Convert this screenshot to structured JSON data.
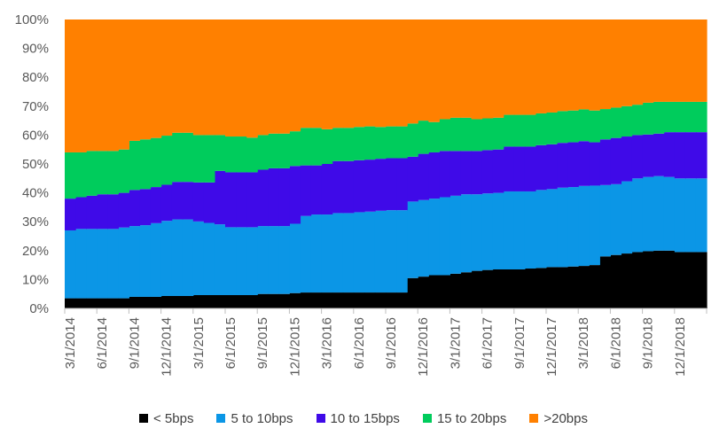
{
  "chart_data": {
    "type": "area",
    "stacked": true,
    "percent": true,
    "step": true,
    "ylim": [
      0,
      100
    ],
    "yticks": [
      "0%",
      "10%",
      "20%",
      "30%",
      "40%",
      "50%",
      "60%",
      "70%",
      "80%",
      "90%",
      "100%"
    ],
    "x_tick_labels": [
      "3/1/2014",
      "6/1/2014",
      "9/1/2014",
      "12/1/2014",
      "3/1/2015",
      "6/1/2015",
      "9/1/2015",
      "12/1/2015",
      "3/1/2016",
      "6/1/2016",
      "9/1/2016",
      "12/1/2016",
      "3/1/2017",
      "6/1/2017",
      "9/1/2017",
      "12/1/2017",
      "3/1/2018",
      "6/1/2018",
      "9/1/2018",
      "12/1/2018"
    ],
    "x_first": "3/1/2014",
    "x_last": "1/1/2019",
    "x_frequency": "monthly",
    "legend_position": "bottom",
    "grid": false,
    "series": [
      {
        "name": "< 5bps",
        "color": "#000000",
        "values": [
          3.5,
          3.5,
          3.5,
          3.5,
          3.5,
          3.5,
          4.0,
          4.0,
          4.0,
          4.3,
          4.3,
          4.3,
          4.6,
          4.6,
          4.6,
          4.6,
          4.6,
          4.6,
          5.0,
          5.0,
          5.0,
          5.3,
          5.5,
          5.5,
          5.5,
          5.5,
          5.5,
          5.5,
          5.5,
          5.5,
          5.5,
          5.5,
          10.5,
          11.0,
          11.5,
          11.5,
          12.0,
          12.5,
          13.0,
          13.3,
          13.5,
          13.5,
          13.5,
          13.8,
          14.0,
          14.3,
          14.3,
          14.5,
          14.7,
          15.0,
          18.0,
          18.5,
          19.0,
          19.5,
          19.8,
          20.0,
          20.0,
          19.5,
          19.5,
          19.5
        ]
      },
      {
        "name": "5 to 10bps",
        "color": "#0b96e6",
        "values": [
          23.5,
          24.0,
          24.0,
          24.0,
          24.0,
          24.5,
          24.5,
          24.8,
          25.5,
          26.0,
          26.5,
          26.5,
          25.5,
          25.0,
          24.5,
          23.5,
          23.5,
          23.5,
          23.5,
          23.5,
          23.5,
          24.0,
          26.5,
          27.0,
          27.0,
          27.5,
          27.5,
          27.8,
          28.0,
          28.3,
          28.5,
          28.5,
          26.5,
          26.5,
          26.5,
          27.0,
          27.0,
          27.0,
          26.5,
          26.5,
          26.5,
          27.0,
          27.0,
          26.7,
          27.0,
          27.0,
          27.5,
          27.5,
          27.7,
          27.5,
          24.7,
          24.5,
          25.0,
          25.5,
          25.7,
          25.8,
          25.5,
          25.5,
          25.5,
          25.5
        ]
      },
      {
        "name": "10 to 15bps",
        "color": "#3f0ae8",
        "values": [
          11.0,
          11.0,
          11.5,
          12.0,
          12.0,
          12.0,
          12.5,
          12.5,
          12.5,
          12.5,
          13.0,
          13.0,
          13.5,
          14.0,
          18.5,
          19.0,
          19.0,
          19.0,
          19.5,
          20.0,
          20.0,
          20.0,
          17.5,
          17.0,
          17.5,
          18.0,
          18.0,
          18.0,
          18.0,
          18.0,
          18.0,
          18.0,
          15.5,
          16.0,
          16.0,
          16.0,
          15.5,
          15.0,
          15.0,
          15.0,
          15.0,
          15.5,
          15.5,
          15.5,
          15.5,
          15.5,
          15.5,
          15.5,
          15.5,
          15.0,
          15.8,
          16.0,
          15.5,
          15.0,
          14.7,
          14.7,
          15.5,
          16.0,
          16.0,
          16.0
        ]
      },
      {
        "name": "15 to 20bps",
        "color": "#00cc5c",
        "values": [
          16.0,
          15.5,
          15.5,
          15.0,
          15.0,
          15.0,
          17.0,
          17.2,
          17.0,
          17.0,
          17.0,
          17.0,
          16.4,
          16.4,
          12.4,
          12.4,
          12.4,
          12.0,
          12.0,
          12.0,
          12.0,
          12.0,
          13.0,
          13.0,
          12.0,
          11.5,
          11.5,
          11.5,
          11.5,
          11.0,
          11.0,
          11.0,
          11.5,
          11.5,
          10.5,
          11.0,
          11.5,
          11.5,
          11.0,
          11.0,
          11.0,
          11.0,
          11.0,
          11.0,
          11.0,
          11.0,
          11.0,
          11.0,
          11.0,
          11.0,
          10.5,
          10.5,
          10.5,
          10.5,
          11.0,
          11.0,
          10.5,
          10.5,
          10.5,
          10.5
        ]
      },
      {
        "name": ">20bps",
        "color": "#ff8000",
        "values": [
          46.0,
          46.0,
          45.5,
          45.5,
          45.5,
          45.0,
          42.0,
          41.5,
          41.0,
          40.2,
          39.2,
          39.2,
          40.0,
          40.0,
          40.0,
          40.5,
          40.5,
          40.9,
          40.0,
          39.5,
          39.5,
          38.7,
          37.5,
          37.5,
          38.0,
          37.5,
          37.5,
          37.2,
          37.0,
          37.2,
          37.0,
          37.0,
          36.0,
          35.0,
          35.5,
          34.5,
          34.0,
          34.0,
          34.5,
          34.2,
          34.0,
          33.0,
          33.0,
          33.0,
          32.5,
          32.2,
          31.7,
          31.5,
          31.1,
          31.5,
          31.0,
          30.5,
          30.0,
          29.5,
          28.8,
          28.5,
          28.5,
          28.5,
          28.5,
          28.5
        ]
      }
    ]
  }
}
